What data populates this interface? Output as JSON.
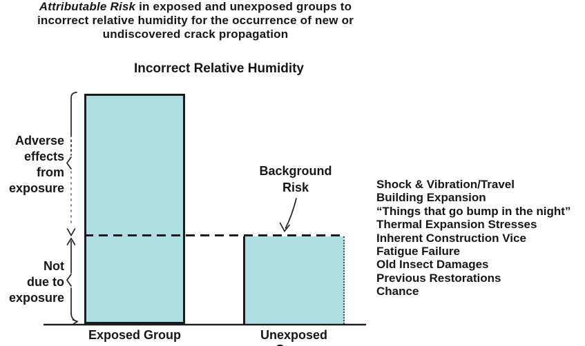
{
  "colors": {
    "bar_fill": "#aedee2",
    "ink": "#1b1b1b",
    "background": "#ffffff"
  },
  "title": {
    "line1_italic": "Attributable Risk",
    "line1_rest": " in exposed and unexposed groups to",
    "line2": "incorrect relative humidity for the occurrence of new or",
    "line3": "undiscovered crack propagation"
  },
  "chart_data": {
    "type": "bar",
    "title": "Incorrect Relative Humidity",
    "categories": [
      "Exposed Group",
      "Unexposed Group"
    ],
    "values": [
      1.0,
      0.38
    ],
    "xlabel": "",
    "ylabel": "",
    "ylim": [
      0,
      1.05
    ],
    "grid": false,
    "legend_position": "none",
    "bar_color": "#aedee2",
    "background_risk_level": 0.38,
    "annotations": {
      "background_risk": {
        "lines": [
          "Background",
          "Risk"
        ]
      },
      "adverse_effects": {
        "lines": [
          "Adverse",
          "effects",
          "from",
          "exposure"
        ]
      },
      "not_due": {
        "lines": [
          "Not",
          "due to",
          "exposure"
        ]
      }
    }
  },
  "background_factors": [
    "Shock & Vibration/Travel",
    "Building Expansion",
    "“Things that go bump in the night”",
    "Thermal Expansion Stresses",
    "Inherent Construction Vice",
    "Fatigue Failure",
    "Old Insect Damages",
    "Previous Restorations",
    "Chance"
  ]
}
